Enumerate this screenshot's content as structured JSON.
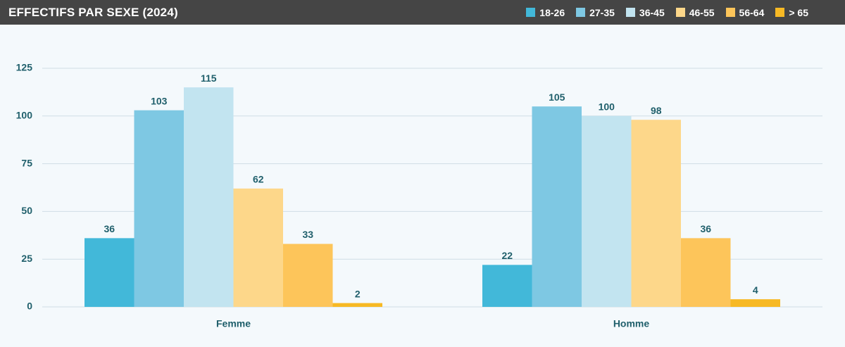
{
  "chart_data": {
    "type": "bar",
    "title": "EFFECTIFS PAR SEXE (2024)",
    "categories": [
      "Femme",
      "Homme"
    ],
    "series": [
      {
        "name": "18-26",
        "color": "#42b8d9",
        "values": [
          36,
          22
        ]
      },
      {
        "name": "27-35",
        "color": "#7ec8e3",
        "values": [
          103,
          105
        ]
      },
      {
        "name": "36-45",
        "color": "#c2e4f0",
        "values": [
          115,
          100
        ]
      },
      {
        "name": "46-55",
        "color": "#fdd78a",
        "values": [
          62,
          98
        ]
      },
      {
        "name": "56-64",
        "color": "#fdc55a",
        "values": [
          33,
          36
        ]
      },
      {
        "name": "> 65",
        "color": "#f7b924",
        "values": [
          2,
          4
        ]
      }
    ],
    "ylim": [
      0,
      125
    ],
    "yticks": [
      0,
      25,
      50,
      75,
      100,
      125
    ],
    "grid": true
  }
}
